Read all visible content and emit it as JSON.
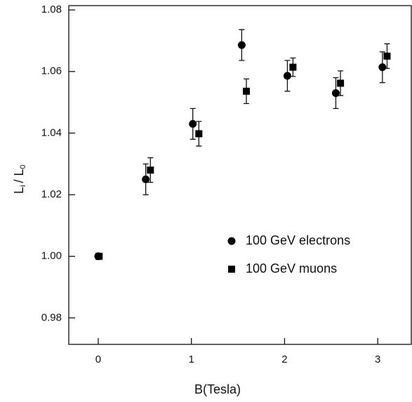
{
  "chart_data": {
    "type": "scatter",
    "x_label": "B(Tesla)",
    "y_label_parts": [
      "L",
      "i",
      "/ L",
      "0"
    ],
    "xlim": [
      -0.316,
      3.36
    ],
    "xticks": [
      0,
      1,
      2,
      3
    ],
    "ylim": [
      0.9714,
      1.0814
    ],
    "yticks": [
      {
        "value": 0.98,
        "label": "0.98"
      },
      {
        "value": 1.0,
        "label": "1.00"
      },
      {
        "value": 1.02,
        "label": "1.02"
      },
      {
        "value": 1.04,
        "label": "1.04"
      },
      {
        "value": 1.06,
        "label": "1.06"
      },
      {
        "value": 1.08,
        "label": "1.08"
      }
    ],
    "legend": "lower right",
    "series": [
      {
        "name": "100 GeV electrons",
        "marker": "circle",
        "color": "#000000",
        "x": [
          0,
          0.51,
          1.015,
          1.54,
          2.03,
          2.55,
          3.05
        ],
        "values": [
          1.0,
          1.025,
          1.043,
          1.0686,
          1.0586,
          1.053,
          1.0614
        ],
        "errors": [
          0,
          0.005,
          0.005,
          0.005,
          0.005,
          0.005,
          0.005
        ]
      },
      {
        "name": "100 GeV muons",
        "marker": "square",
        "color": "#000000",
        "x": [
          0.01,
          0.56,
          1.08,
          1.59,
          2.09,
          2.6,
          3.1
        ],
        "values": [
          1.0,
          1.028,
          1.0398,
          1.0536,
          1.0614,
          1.0562,
          1.065
        ],
        "errors": [
          0,
          0.004,
          0.004,
          0.004,
          0.003,
          0.004,
          0.004
        ]
      }
    ]
  }
}
